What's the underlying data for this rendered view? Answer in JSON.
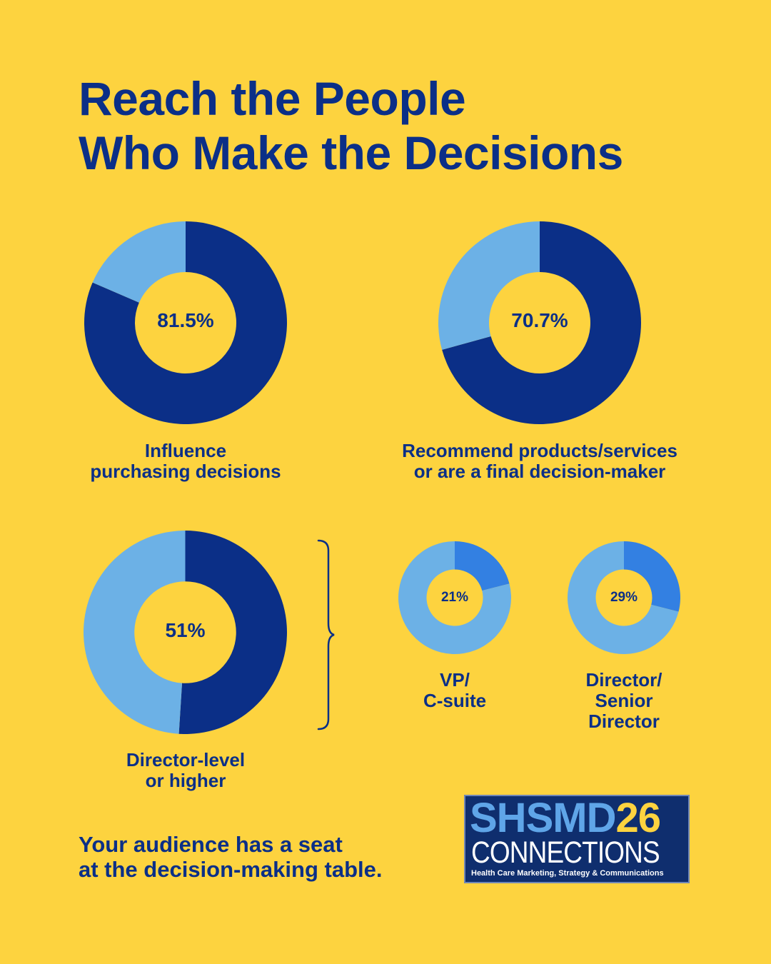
{
  "title": {
    "line1": "Reach the People",
    "line2": "Who Make the Decisions"
  },
  "colors": {
    "background": "#FDD33F",
    "primary": "#0B2F87",
    "light": "#6CB1E6",
    "medium": "#3380E2"
  },
  "chart_data": [
    {
      "type": "pie",
      "value_label": "81.5%",
      "values": [
        81.5,
        18.5
      ],
      "colors": [
        "#0B2F87",
        "#6CB1E6"
      ],
      "label_lines": [
        "Influence",
        "purchasing decisions"
      ]
    },
    {
      "type": "pie",
      "value_label": "70.7%",
      "values": [
        70.7,
        29.3
      ],
      "colors": [
        "#0B2F87",
        "#6CB1E6"
      ],
      "label_lines": [
        "Recommend products/services",
        "or are a final decision-maker"
      ]
    },
    {
      "type": "pie",
      "value_label": "51%",
      "values": [
        51,
        49
      ],
      "colors": [
        "#0B2F87",
        "#6CB1E6"
      ],
      "label_lines": [
        "Director-level",
        "or higher"
      ]
    },
    {
      "type": "pie",
      "value_label": "21%",
      "values": [
        21,
        79
      ],
      "colors": [
        "#3380E2",
        "#6CB1E6"
      ],
      "label_lines": [
        "VP/",
        "C-suite"
      ]
    },
    {
      "type": "pie",
      "value_label": "29%",
      "values": [
        29,
        71
      ],
      "colors": [
        "#3380E2",
        "#6CB1E6"
      ],
      "label_lines": [
        "Director/",
        "Senior",
        "Director"
      ]
    }
  ],
  "tagline": {
    "line1": "Your audience has a seat",
    "line2": "at the decision-making table."
  },
  "logo": {
    "brand": "SHSMD",
    "year": "26",
    "name": "CONNECTIONS",
    "tagline": "Health Care Marketing, Strategy & Communications"
  }
}
